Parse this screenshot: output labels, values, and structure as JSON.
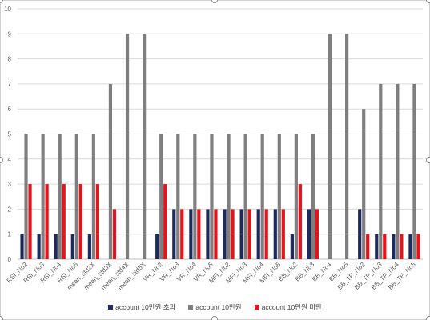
{
  "chart_data": {
    "type": "bar",
    "ylim": [
      0,
      10
    ],
    "yticks": [
      0,
      1,
      2,
      3,
      4,
      5,
      6,
      7,
      8,
      9,
      10
    ],
    "grid": true,
    "legend_position": "bottom",
    "categories": [
      "RSI_No2",
      "RSI_No3",
      "RSI_No4",
      "RSI_No5",
      "mean_std2X",
      "mean_std3X",
      "mean_std4X",
      "mean_std5X",
      "VR_No2",
      "VR_No3",
      "VR_No4",
      "VR_No5",
      "MFI_No2",
      "MFI_No3",
      "MFI_No4",
      "MFI_No5",
      "BB_No2",
      "BB_No3",
      "BB_No4",
      "BB_No5",
      "BB_TP_No2",
      "BB_TP_No3",
      "BB_TP_No4",
      "BB_TP_No5"
    ],
    "series": [
      {
        "name": "account 10만원 초과",
        "color": "#1f2a5c",
        "values": [
          1,
          1,
          1,
          1,
          1,
          0,
          0,
          0,
          1,
          2,
          2,
          2,
          2,
          2,
          2,
          2,
          1,
          2,
          0,
          0,
          2,
          1,
          1,
          1
        ]
      },
      {
        "name": "account 10만원",
        "color": "#7f7f7f",
        "values": [
          5,
          5,
          5,
          5,
          5,
          7,
          9,
          9,
          5,
          5,
          5,
          5,
          5,
          5,
          5,
          5,
          5,
          5,
          9,
          9,
          6,
          7,
          7,
          7
        ]
      },
      {
        "name": "account 10만원 미만",
        "color": "#e3141b",
        "values": [
          3,
          3,
          3,
          3,
          3,
          2,
          0,
          0,
          3,
          2,
          2,
          2,
          2,
          2,
          2,
          2,
          3,
          2,
          0,
          0,
          1,
          1,
          1,
          1
        ]
      }
    ]
  }
}
